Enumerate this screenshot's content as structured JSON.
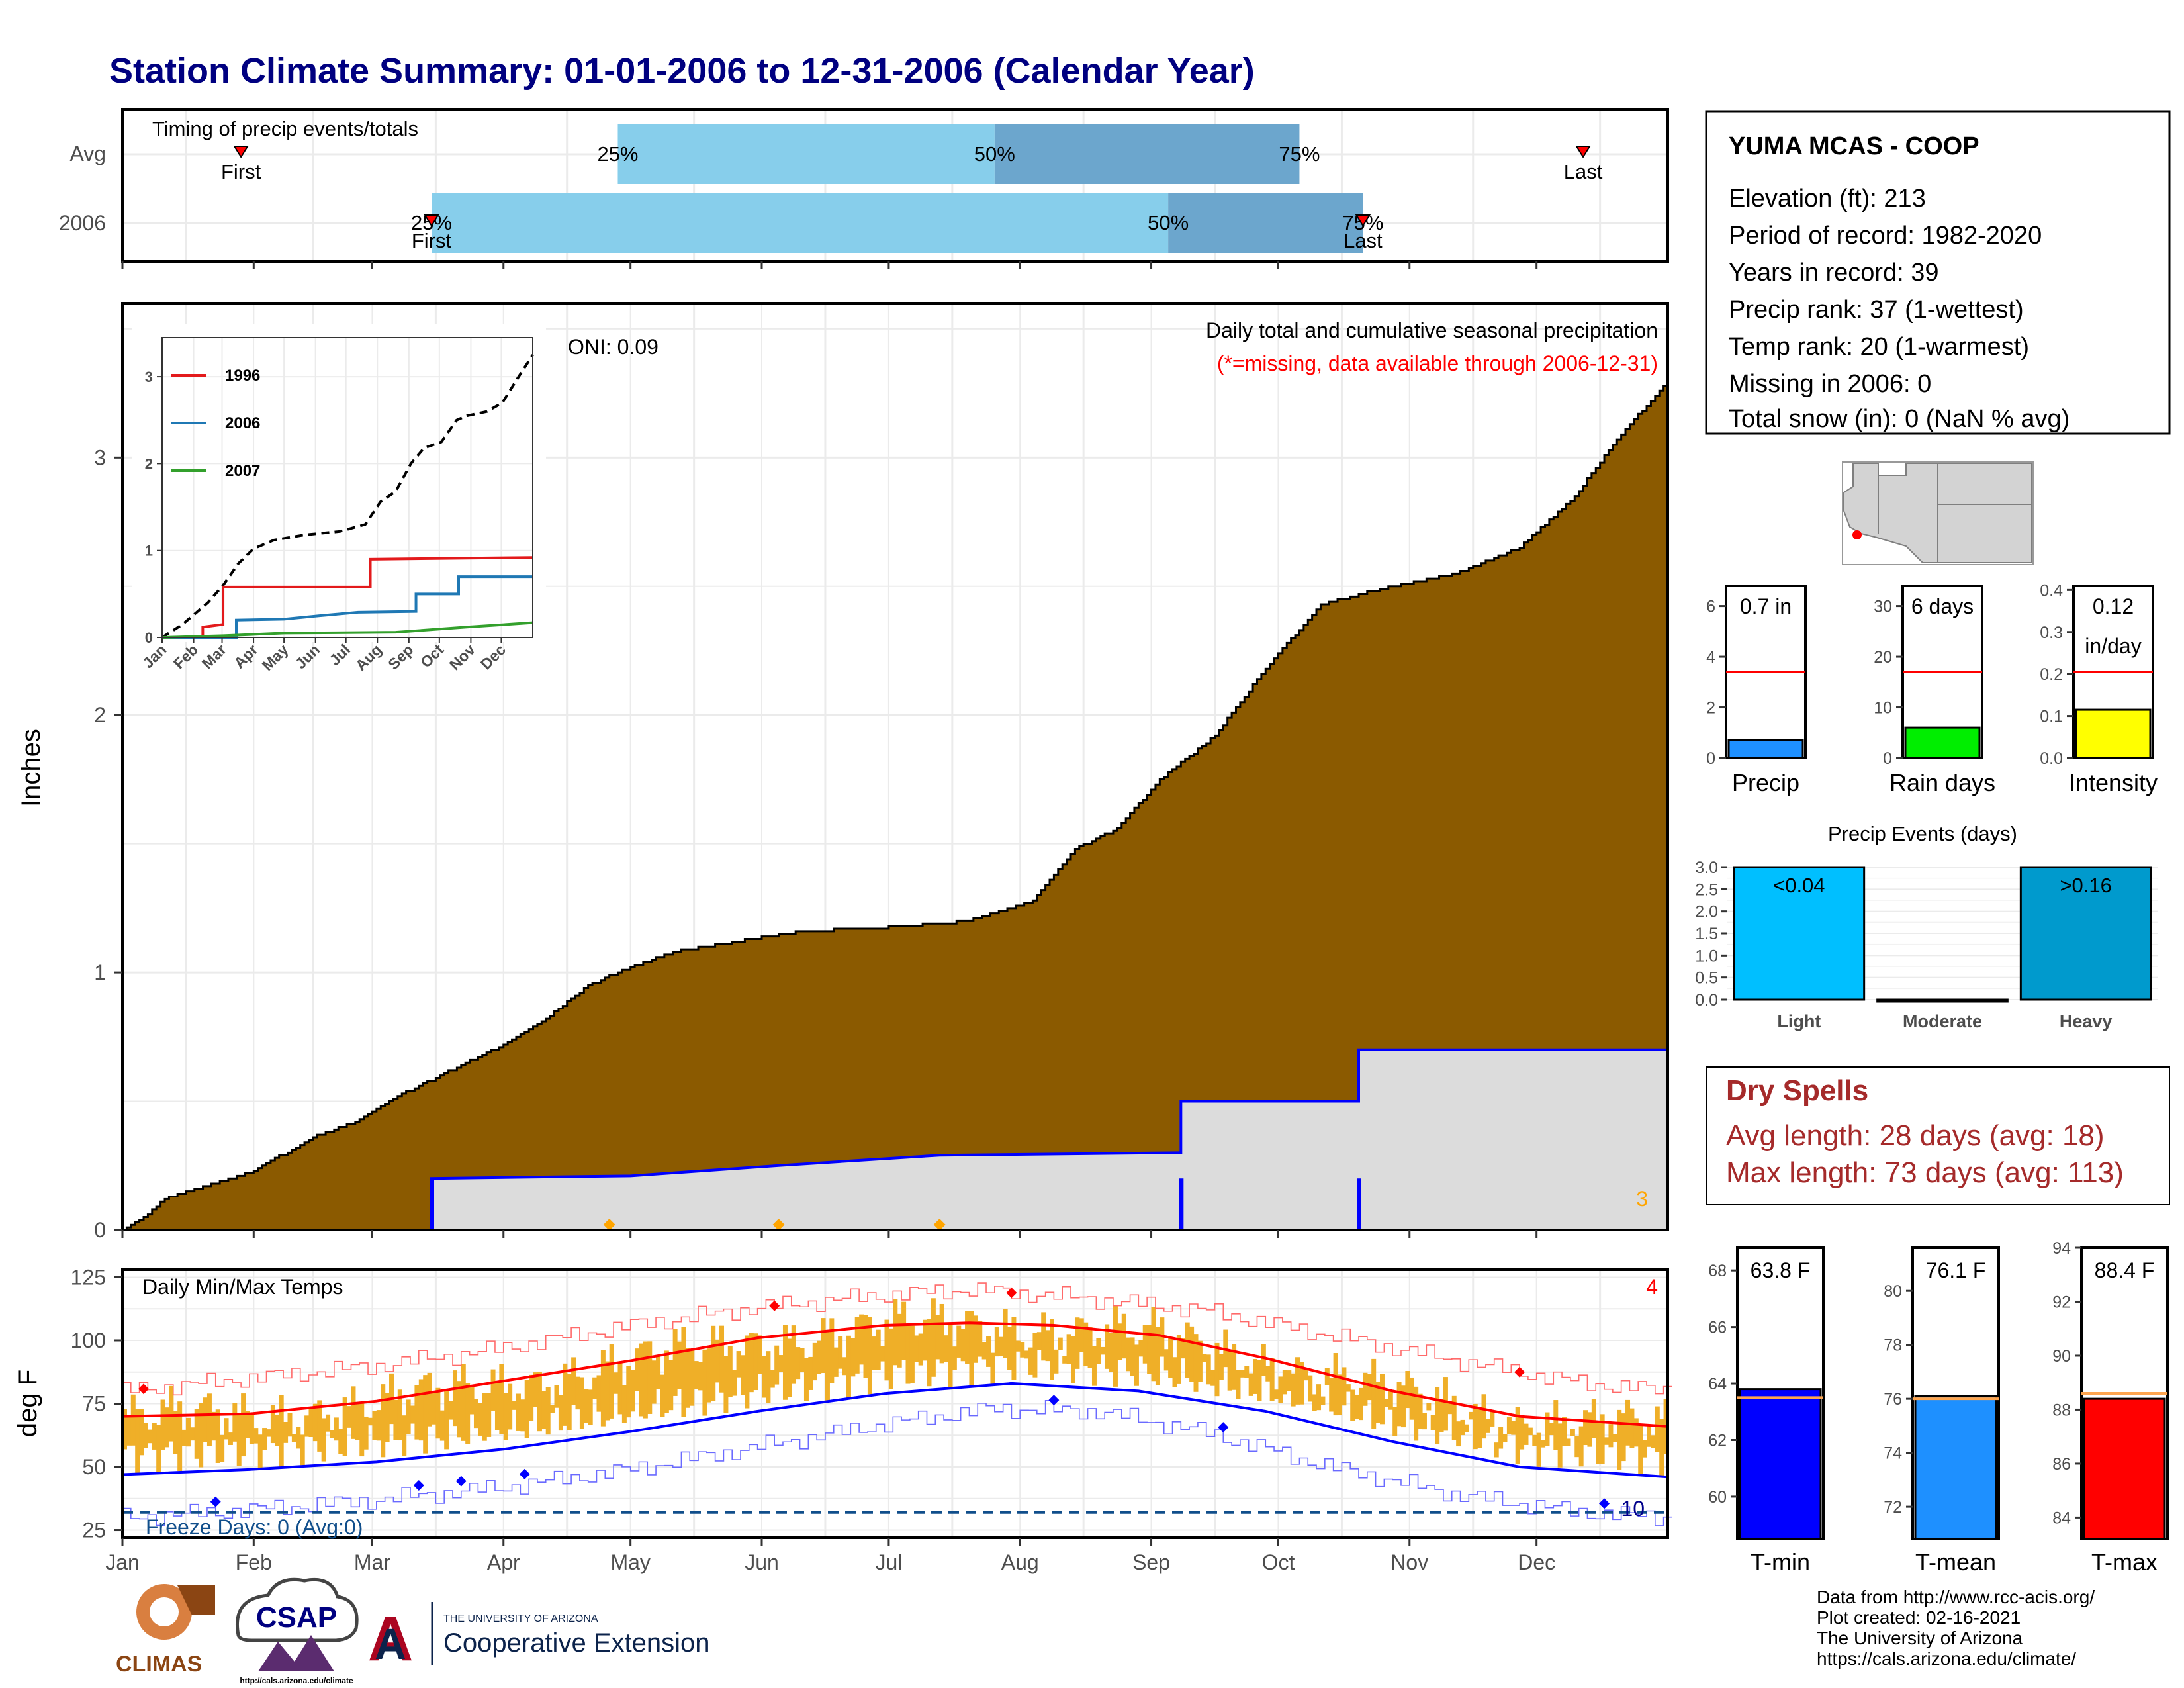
{
  "page": {
    "title": "Station Climate Summary: 01-01-2006 to 12-31-2006 (Calendar Year)"
  },
  "months": [
    "Jan",
    "Feb",
    "Mar",
    "Apr",
    "May",
    "Jun",
    "Jul",
    "Aug",
    "Sep",
    "Oct",
    "Nov",
    "Dec"
  ],
  "timing": {
    "title": "Timing of precip events/totals",
    "rows": [
      {
        "label": "Avg",
        "first_label": "First",
        "last_label": "Last",
        "first_doy": 28,
        "last_doy": 345,
        "p25_doy": 117,
        "p50_doy": 206,
        "p75_doy": 278,
        "pct_labels": [
          "25%",
          "50%",
          "75%"
        ]
      },
      {
        "label": "2006",
        "first_label": "First",
        "last_label": "Last",
        "first_doy": 73,
        "last_doy": 293,
        "p25_doy": 73,
        "p50_doy": 247,
        "p75_doy": 293,
        "pct_labels": [
          "25%",
          "50%",
          "75%"
        ]
      }
    ]
  },
  "precip": {
    "ylabel": "Inches",
    "oni": "ONI: 0.09",
    "desc": "Daily total and cumulative seasonal precipitation",
    "missing_note": "(*=missing, data available through 2006-12-31)",
    "count_label": "3",
    "yticks": [
      "0",
      "1",
      "2",
      "3"
    ],
    "ylim": [
      0,
      3.6
    ],
    "avg_cumulative": [
      [
        0,
        0
      ],
      [
        5,
        0.05
      ],
      [
        10,
        0.12
      ],
      [
        20,
        0.17
      ],
      [
        30,
        0.22
      ],
      [
        45,
        0.36
      ],
      [
        55,
        0.42
      ],
      [
        65,
        0.52
      ],
      [
        75,
        0.6
      ],
      [
        90,
        0.72
      ],
      [
        100,
        0.82
      ],
      [
        110,
        0.95
      ],
      [
        120,
        1.02
      ],
      [
        130,
        1.08
      ],
      [
        145,
        1.12
      ],
      [
        160,
        1.16
      ],
      [
        175,
        1.17
      ],
      [
        185,
        1.18
      ],
      [
        200,
        1.2
      ],
      [
        215,
        1.28
      ],
      [
        225,
        1.48
      ],
      [
        235,
        1.56
      ],
      [
        245,
        1.75
      ],
      [
        258,
        1.92
      ],
      [
        270,
        2.18
      ],
      [
        283,
        2.43
      ],
      [
        300,
        2.5
      ],
      [
        315,
        2.55
      ],
      [
        330,
        2.65
      ],
      [
        343,
        2.85
      ],
      [
        352,
        3.05
      ],
      [
        365,
        3.3
      ]
    ],
    "obs_cumulative": [
      [
        0,
        0
      ],
      [
        73,
        0
      ],
      [
        73,
        0.2
      ],
      [
        120,
        0.21
      ],
      [
        155,
        0.25
      ],
      [
        193,
        0.29
      ],
      [
        250,
        0.3
      ],
      [
        250,
        0.5
      ],
      [
        292,
        0.5
      ],
      [
        292,
        0.7
      ],
      [
        365,
        0.7
      ]
    ],
    "event_spikes_doy": [
      73,
      250,
      292
    ],
    "record_markers_doy": [
      115,
      155,
      193
    ]
  },
  "inset": {
    "xticks": [
      "Jan",
      "Feb",
      "Mar",
      "Apr",
      "May",
      "Jun",
      "Jul",
      "Aug",
      "Sep",
      "Oct",
      "Nov",
      "Dec"
    ],
    "yticks": [
      "0",
      "1",
      "2",
      "3"
    ],
    "legend": [
      {
        "name": "1996",
        "color": "#e31a1c"
      },
      {
        "name": "2006",
        "color": "#1f78b4"
      },
      {
        "name": "2007",
        "color": "#33a02c"
      }
    ],
    "series": [
      {
        "name": "avg",
        "color": "#000000",
        "dashed": true,
        "points": [
          [
            0,
            0
          ],
          [
            20,
            0.15
          ],
          [
            45,
            0.4
          ],
          [
            60,
            0.6
          ],
          [
            75,
            0.85
          ],
          [
            90,
            1.02
          ],
          [
            110,
            1.12
          ],
          [
            140,
            1.18
          ],
          [
            175,
            1.22
          ],
          [
            200,
            1.3
          ],
          [
            215,
            1.56
          ],
          [
            230,
            1.68
          ],
          [
            245,
            2.0
          ],
          [
            258,
            2.18
          ],
          [
            275,
            2.25
          ],
          [
            290,
            2.5
          ],
          [
            300,
            2.55
          ],
          [
            320,
            2.6
          ],
          [
            335,
            2.7
          ],
          [
            350,
            2.98
          ],
          [
            365,
            3.25
          ]
        ]
      },
      {
        "name": "1996",
        "color": "#e31a1c",
        "dashed": false,
        "points": [
          [
            0,
            0
          ],
          [
            40,
            0
          ],
          [
            40,
            0.12
          ],
          [
            60,
            0.15
          ],
          [
            60,
            0.58
          ],
          [
            205,
            0.58
          ],
          [
            205,
            0.9
          ],
          [
            365,
            0.92
          ]
        ]
      },
      {
        "name": "2006",
        "color": "#1f78b4",
        "dashed": false,
        "points": [
          [
            0,
            0
          ],
          [
            73,
            0
          ],
          [
            73,
            0.2
          ],
          [
            120,
            0.21
          ],
          [
            155,
            0.25
          ],
          [
            193,
            0.29
          ],
          [
            250,
            0.3
          ],
          [
            250,
            0.5
          ],
          [
            292,
            0.5
          ],
          [
            292,
            0.7
          ],
          [
            365,
            0.7
          ]
        ]
      },
      {
        "name": "2007",
        "color": "#33a02c",
        "dashed": false,
        "points": [
          [
            0,
            0
          ],
          [
            60,
            0.02
          ],
          [
            120,
            0.05
          ],
          [
            230,
            0.06
          ],
          [
            300,
            0.12
          ],
          [
            365,
            0.17
          ]
        ]
      }
    ]
  },
  "temps": {
    "title": "Daily Min/Max Temps",
    "ylabel": "deg F",
    "yticks": [
      "25",
      "50",
      "75",
      "100",
      "125"
    ],
    "ylim": [
      22,
      128
    ],
    "freeze": "Freeze Days: 0 (Avg:0)",
    "freeze_line": 32,
    "count_top": "4",
    "count_bottom": "10",
    "avg_max": [
      [
        0,
        70
      ],
      [
        30,
        71
      ],
      [
        60,
        76
      ],
      [
        90,
        84
      ],
      [
        120,
        92
      ],
      [
        150,
        101
      ],
      [
        180,
        106
      ],
      [
        200,
        107
      ],
      [
        220,
        106
      ],
      [
        245,
        102
      ],
      [
        270,
        93
      ],
      [
        300,
        80
      ],
      [
        330,
        70
      ],
      [
        365,
        66
      ]
    ],
    "avg_min": [
      [
        0,
        47
      ],
      [
        30,
        49
      ],
      [
        60,
        52
      ],
      [
        90,
        57
      ],
      [
        120,
        64
      ],
      [
        150,
        72
      ],
      [
        180,
        79
      ],
      [
        210,
        83
      ],
      [
        240,
        80
      ],
      [
        270,
        72
      ],
      [
        300,
        60
      ],
      [
        330,
        50
      ],
      [
        365,
        46
      ]
    ],
    "rec_max": [
      [
        0,
        80
      ],
      [
        30,
        85
      ],
      [
        60,
        90
      ],
      [
        90,
        97
      ],
      [
        120,
        106
      ],
      [
        150,
        113
      ],
      [
        180,
        118
      ],
      [
        200,
        120
      ],
      [
        225,
        117
      ],
      [
        255,
        112
      ],
      [
        285,
        102
      ],
      [
        315,
        92
      ],
      [
        345,
        83
      ],
      [
        365,
        80
      ]
    ],
    "rec_min": [
      [
        0,
        30
      ],
      [
        30,
        33
      ],
      [
        60,
        37
      ],
      [
        90,
        42
      ],
      [
        120,
        49
      ],
      [
        150,
        58
      ],
      [
        180,
        67
      ],
      [
        205,
        73
      ],
      [
        230,
        72
      ],
      [
        255,
        64
      ],
      [
        285,
        50
      ],
      [
        315,
        39
      ],
      [
        345,
        32
      ],
      [
        365,
        30
      ]
    ],
    "record_high_doy": [
      5,
      154,
      210,
      330
    ],
    "record_low_doy": [
      22,
      70,
      80,
      95,
      220,
      260,
      350
    ]
  },
  "station": {
    "name": "YUMA MCAS - COOP",
    "lines": [
      "Elevation (ft): 213",
      "Period of record: 1982-2020",
      "Years in record: 39",
      "Precip rank: 37 (1-wettest)",
      "Temp rank: 20 (1-warmest)",
      "Missing in 2006: 0",
      "Total snow (in): 0 (NaN % avg)"
    ]
  },
  "mini_bars": [
    {
      "caption": "Precip",
      "value_label": "0.7 in",
      "value": 0.7,
      "avg": 3.4,
      "max": 6.8,
      "ticks": [
        "0",
        "2",
        "4",
        "6"
      ],
      "tick_values": [
        0,
        2,
        4,
        6
      ],
      "color": "#1e90ff"
    },
    {
      "caption": "Rain days",
      "value_label": "6 days",
      "value": 6,
      "avg": 17,
      "max": 34,
      "ticks": [
        "0",
        "10",
        "20",
        "30"
      ],
      "tick_values": [
        0,
        10,
        20,
        30
      ],
      "color": "#00ee00"
    },
    {
      "caption": "Intensity",
      "value_label": "0.12 in/day",
      "value": 0.115,
      "avg": 0.205,
      "max": 0.41,
      "ticks": [
        "0.0",
        "0.1",
        "0.2",
        "0.3",
        "0.4"
      ],
      "tick_values": [
        0,
        0.1,
        0.2,
        0.3,
        0.4
      ],
      "color": "#ffff00"
    }
  ],
  "events": {
    "title": "Precip Events (days)",
    "yticks": [
      "0.0",
      "0.5",
      "1.0",
      "1.5",
      "2.0",
      "2.5",
      "3.0"
    ],
    "categories": [
      "Light",
      "Moderate",
      "Heavy"
    ],
    "values": [
      3,
      0,
      3
    ],
    "labels": [
      "<0.04",
      "",
      ">0.16"
    ],
    "colors": [
      "#00bfff",
      "#1e90ff",
      "#009acd"
    ]
  },
  "dry_spells": {
    "title": "Dry Spells",
    "avg": "Avg length: 28 days (avg: 18)",
    "max": "Max length: 73 days (avg: 113)"
  },
  "temp_bars": [
    {
      "caption": "T-min",
      "value_label": "63.8 F",
      "value": 63.8,
      "avg": 63.5,
      "min": 58.5,
      "max": 68.8,
      "ticks": [
        "60",
        "62",
        "64",
        "66",
        "68"
      ],
      "tick_values": [
        60,
        62,
        64,
        66,
        68
      ],
      "color": "#0000ff"
    },
    {
      "caption": "T-mean",
      "value_label": "76.1 F",
      "value": 76.1,
      "avg": 76.0,
      "min": 70.8,
      "max": 81.6,
      "ticks": [
        "72",
        "74",
        "76",
        "78",
        "80"
      ],
      "tick_values": [
        72,
        74,
        76,
        78,
        80
      ],
      "color": "#1e90ff"
    },
    {
      "caption": "T-max",
      "value_label": "88.4 F",
      "value": 88.4,
      "avg": 88.6,
      "min": 83.2,
      "max": 94,
      "ticks": [
        "84",
        "86",
        "88",
        "90",
        "92",
        "94"
      ],
      "tick_values": [
        84,
        86,
        88,
        90,
        92,
        94
      ],
      "color": "#ff0000"
    }
  ],
  "footer": {
    "lines": [
      "Data from http://www.rcc-acis.org/",
      "Plot created: 02-16-2021",
      "The University of Arizona",
      "https://cals.arizona.edu/climate/"
    ],
    "climas": "CLIMAS",
    "csap": "CSAP",
    "csap_url": "http://cals.arizona.edu/climate",
    "ua_small": "THE UNIVERSITY OF ARIZONA",
    "ua_big": "Cooperative Extension"
  },
  "chart_data": [
    {
      "type": "area",
      "title": "Daily total and cumulative seasonal precipitation",
      "xlabel": "",
      "ylabel": "Inches",
      "ylim": [
        0,
        3.6
      ],
      "series": [
        {
          "values": [
            [
              1,
              0
            ],
            [
              60,
              0.42
            ],
            [
              120,
              1.02
            ],
            [
              200,
              1.2
            ],
            [
              270,
              2.18
            ],
            [
              365,
              3.3
            ]
          ]
        },
        {
          "values": [
            [
              73,
              0.2
            ],
            [
              250,
              0.5
            ],
            [
              292,
              0.7
            ],
            [
              365,
              0.7
            ]
          ]
        }
      ]
    },
    {
      "type": "line",
      "title": "Daily Min/Max Temps",
      "ylabel": "deg F",
      "ylim": [
        22,
        128
      ]
    },
    {
      "type": "bar",
      "title": "Precip Events (days)",
      "categories": [
        "Light",
        "Moderate",
        "Heavy"
      ],
      "values": [
        3,
        0,
        3
      ]
    },
    {
      "type": "bar",
      "categories": [
        "Precip",
        "Rain days",
        "Intensity"
      ],
      "values": [
        0.7,
        6,
        0.12
      ]
    },
    {
      "type": "bar",
      "categories": [
        "T-min",
        "T-mean",
        "T-max"
      ],
      "values": [
        63.8,
        76.1,
        88.4
      ]
    }
  ]
}
